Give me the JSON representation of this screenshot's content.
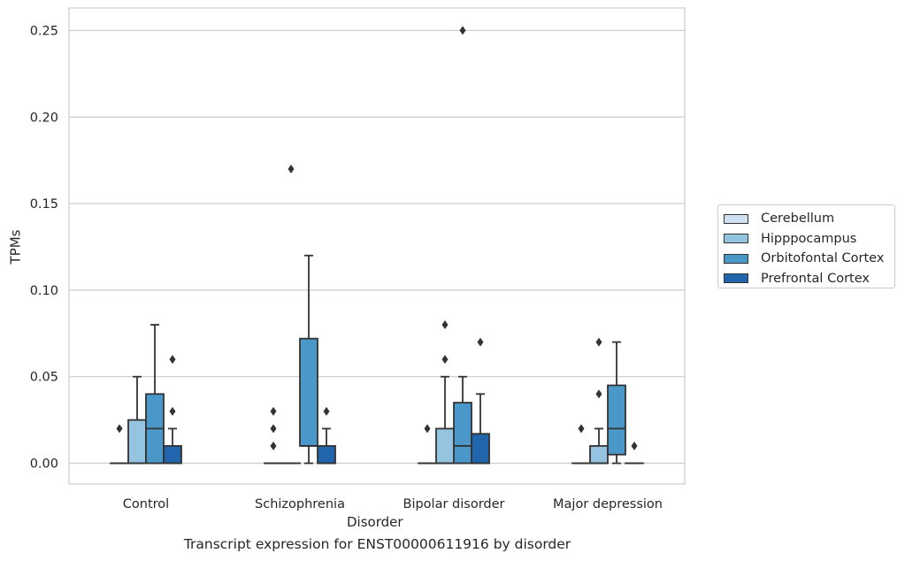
{
  "chart_data": {
    "type": "box",
    "title": "",
    "caption": "Transcript expression for ENST00000611916 by disorder",
    "xlabel": "Disorder",
    "ylabel": "TPMs",
    "ylim": [
      -0.012,
      0.263
    ],
    "yticks": [
      "0.00",
      "0.05",
      "0.10",
      "0.15",
      "0.20",
      "0.25"
    ],
    "ytick_values": [
      0.0,
      0.05,
      0.1,
      0.15,
      0.2,
      0.25
    ],
    "grid": "horizontal",
    "legend_position": "right",
    "categories": [
      "Control",
      "Schizophrenia",
      "Bipolar disorder",
      "Major depression"
    ],
    "series": [
      {
        "name": "Cerebellum",
        "color": "#d0e1f2",
        "boxes": [
          {
            "q1": 0.0,
            "median": 0.0,
            "q3": 0.0,
            "whislo": 0.0,
            "whishi": 0.0,
            "fliers": [
              0.02
            ]
          },
          {
            "q1": 0.0,
            "median": 0.0,
            "q3": 0.0,
            "whislo": 0.0,
            "whishi": 0.0,
            "fliers": [
              0.01,
              0.02,
              0.03
            ]
          },
          {
            "q1": 0.0,
            "median": 0.0,
            "q3": 0.0,
            "whislo": 0.0,
            "whishi": 0.0,
            "fliers": [
              0.02
            ]
          },
          {
            "q1": 0.0,
            "median": 0.0,
            "q3": 0.0,
            "whislo": 0.0,
            "whishi": 0.0,
            "fliers": [
              0.02
            ]
          }
        ]
      },
      {
        "name": "Hipppocampus",
        "color": "#94c4df",
        "boxes": [
          {
            "q1": 0.0,
            "median": 0.0,
            "q3": 0.025,
            "whislo": 0.0,
            "whishi": 0.05,
            "fliers": []
          },
          {
            "q1": 0.0,
            "median": 0.0,
            "q3": 0.0,
            "whislo": 0.0,
            "whishi": 0.0,
            "fliers": [
              0.17
            ]
          },
          {
            "q1": 0.0,
            "median": 0.0,
            "q3": 0.02,
            "whislo": 0.0,
            "whishi": 0.05,
            "fliers": [
              0.06,
              0.08
            ]
          },
          {
            "q1": 0.0,
            "median": 0.0,
            "q3": 0.01,
            "whislo": 0.0,
            "whishi": 0.02,
            "fliers": [
              0.04,
              0.07
            ]
          }
        ]
      },
      {
        "name": "Orbitofontal Cortex",
        "color": "#4a98c9",
        "boxes": [
          {
            "q1": 0.0,
            "median": 0.02,
            "q3": 0.04,
            "whislo": 0.0,
            "whishi": 0.08,
            "fliers": []
          },
          {
            "q1": 0.01,
            "median": 0.01,
            "q3": 0.072,
            "whislo": 0.0,
            "whishi": 0.12,
            "fliers": []
          },
          {
            "q1": 0.0,
            "median": 0.01,
            "q3": 0.035,
            "whislo": 0.0,
            "whishi": 0.05,
            "fliers": [
              0.25
            ]
          },
          {
            "q1": 0.005,
            "median": 0.02,
            "q3": 0.045,
            "whislo": 0.0,
            "whishi": 0.07,
            "fliers": []
          }
        ]
      },
      {
        "name": "Prefrontal Cortex",
        "color": "#2166ac",
        "boxes": [
          {
            "q1": 0.0,
            "median": 0.0,
            "q3": 0.01,
            "whislo": 0.0,
            "whishi": 0.02,
            "fliers": [
              0.03,
              0.06
            ]
          },
          {
            "q1": 0.0,
            "median": 0.0,
            "q3": 0.01,
            "whislo": 0.0,
            "whishi": 0.02,
            "fliers": [
              0.03
            ]
          },
          {
            "q1": 0.0,
            "median": 0.0,
            "q3": 0.017,
            "whislo": 0.0,
            "whishi": 0.04,
            "fliers": [
              0.07
            ]
          },
          {
            "q1": 0.0,
            "median": 0.0,
            "q3": 0.0,
            "whislo": 0.0,
            "whishi": 0.0,
            "fliers": [
              0.01
            ]
          }
        ]
      }
    ]
  }
}
